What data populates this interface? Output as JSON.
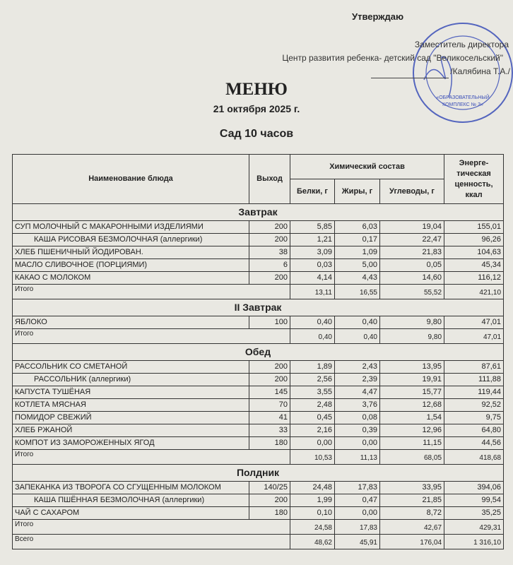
{
  "header": {
    "approve": "Утверждаю",
    "deputy": "Заместитель директора",
    "center": "Центр развития ребенка- детский сад \"Великосельский\"",
    "signatory": "/Калябина Т.А./",
    "stamp_text": "МУНИЦИПАЛЬНОЕ ОБЩЕОБРАЗОВАТЕЛЬНОЕ УЧРЕЖДЕНИЕ ГАВРИЛОВ-ЯМСКОГО МУНИЦИПАЛЬНОГО ОКРУГА ЯРОСЛАВСКОЙ ОБЛАСТИ «ОБРАЗОВАТЕЛЬНЫЙ КОМПЛЕКС № 3» ДЛЯ ДОКУМЕНТОВ",
    "stamp_color": "#3b4fb8"
  },
  "title": "МЕНЮ",
  "date": "21 октября 2025 г.",
  "group": "Сад 10 часов",
  "table": {
    "headers": {
      "name": "Наименование блюда",
      "output": "Выход",
      "chem": "Химический состав",
      "energy": "Энерге-тическая ценность, ккал",
      "protein": "Белки, г",
      "fat": "Жиры, г",
      "carbs": "Углеводы, г"
    },
    "sections": [
      {
        "title": "Завтрак",
        "rows": [
          {
            "name": "СУП МОЛОЧНЫЙ С МАКАРОННЫМИ ИЗДЕЛИЯМИ",
            "output": "200",
            "protein": "5,85",
            "fat": "6,03",
            "carbs": "19,04",
            "energy": "155,01"
          },
          {
            "name": "КАША  РИСОВАЯ БЕЗМОЛОЧНАЯ (аллергики)",
            "indent": true,
            "output": "200",
            "protein": "1,21",
            "fat": "0,17",
            "carbs": "22,47",
            "energy": "96,26"
          },
          {
            "name": "ХЛЕБ ПШЕНИЧНЫЙ ЙОДИРОВАН.",
            "output": "38",
            "protein": "3,09",
            "fat": "1,09",
            "carbs": "21,83",
            "energy": "104,63"
          },
          {
            "name": "МАСЛО  СЛИВОЧНОЕ (ПОРЦИЯМИ)",
            "output": "6",
            "protein": "0,03",
            "fat": "5,00",
            "carbs": "0,05",
            "energy": "45,34"
          },
          {
            "name": "КАКАО С МОЛОКОМ",
            "output": "200",
            "protein": "4,14",
            "fat": "4,43",
            "carbs": "14,60",
            "energy": "116,12"
          }
        ],
        "total": {
          "name": "Итого",
          "protein": "13,11",
          "fat": "16,55",
          "carbs": "55,52",
          "energy": "421,10"
        }
      },
      {
        "title": "II Завтрак",
        "rows": [
          {
            "name": "ЯБЛОКО",
            "output": "100",
            "protein": "0,40",
            "fat": "0,40",
            "carbs": "9,80",
            "energy": "47,01"
          }
        ],
        "total": {
          "name": "Итого",
          "protein": "0,40",
          "fat": "0,40",
          "carbs": "9,80",
          "energy": "47,01"
        }
      },
      {
        "title": "Обед",
        "rows": [
          {
            "name": "РАССОЛЬНИК СО СМЕТАНОЙ",
            "output": "200",
            "protein": "1,89",
            "fat": "2,43",
            "carbs": "13,95",
            "energy": "87,61"
          },
          {
            "name": "РАССОЛЬНИК  (аллергики)",
            "indent": true,
            "output": "200",
            "protein": "2,56",
            "fat": "2,39",
            "carbs": "19,91",
            "energy": "111,88"
          },
          {
            "name": "КАПУСТА ТУШЁНАЯ",
            "output": "145",
            "protein": "3,55",
            "fat": "4,47",
            "carbs": "15,77",
            "energy": "119,44"
          },
          {
            "name": "КОТЛЕТА МЯСНАЯ",
            "output": "70",
            "protein": "2,48",
            "fat": "3,76",
            "carbs": "12,68",
            "energy": "92,52"
          },
          {
            "name": "ПОМИДОР СВЕЖИЙ",
            "output": "41",
            "protein": "0,45",
            "fat": "0,08",
            "carbs": "1,54",
            "energy": "9,75"
          },
          {
            "name": "ХЛЕБ РЖАНОЙ",
            "output": "33",
            "protein": "2,16",
            "fat": "0,39",
            "carbs": "12,96",
            "energy": "64,80"
          },
          {
            "name": "КОМПОТ ИЗ ЗАМОРОЖЕННЫХ ЯГОД",
            "output": "180",
            "protein": "0,00",
            "fat": "0,00",
            "carbs": "11,15",
            "energy": "44,56"
          }
        ],
        "total": {
          "name": "Итого",
          "protein": "10,53",
          "fat": "11,13",
          "carbs": "68,05",
          "energy": "418,68"
        }
      },
      {
        "title": "Полдник",
        "rows": [
          {
            "name": "ЗАПЕКАНКА ИЗ ТВОРОГА СО СГУЩЕННЫМ МОЛОКОМ",
            "output": "140/25",
            "protein": "24,48",
            "fat": "17,83",
            "carbs": "33,95",
            "energy": "394,06"
          },
          {
            "name": "КАША ПШЁННАЯ БЕЗМОЛОЧНАЯ (аллергики)",
            "indent": true,
            "output": "200",
            "protein": "1,99",
            "fat": "0,47",
            "carbs": "21,85",
            "energy": "99,54"
          },
          {
            "name": "ЧАЙ С САХАРОМ",
            "output": "180",
            "protein": "0,10",
            "fat": "0,00",
            "carbs": "8,72",
            "energy": "35,25"
          }
        ],
        "total": {
          "name": "Итого",
          "protein": "24,58",
          "fat": "17,83",
          "carbs": "42,67",
          "energy": "429,31"
        }
      }
    ],
    "grand_total": {
      "name": "Всего",
      "protein": "48,62",
      "fat": "45,91",
      "carbs": "176,04",
      "energy": "1 316,10"
    }
  }
}
